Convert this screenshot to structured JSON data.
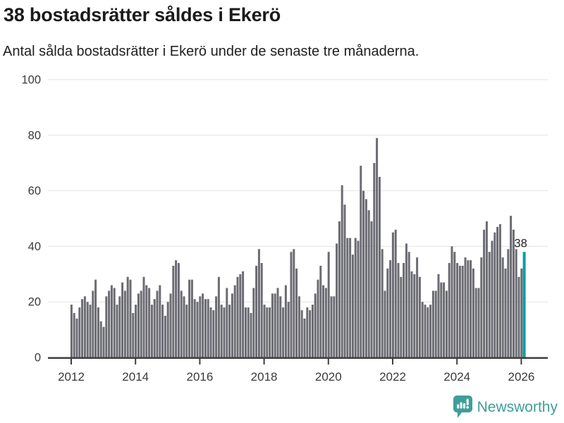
{
  "title": "38 bostadsrätter såldes i Ekerö",
  "subtitle": "Antal sålda bostadsrätter i Ekerö under de senaste tre månaderna.",
  "colors": {
    "bar": "#6b6b73",
    "highlight": "#00a1a1",
    "grid": "#e2e2e2",
    "axis": "#3f3f3f",
    "tick_text": "#3a3a3a",
    "annotation_text": "#222222",
    "brand": "#3f9e98"
  },
  "branding": {
    "logo_text": "Newsworthy",
    "logo_icon": "bar-chart-speech-bubble-icon"
  },
  "chart_data": {
    "type": "bar",
    "title": "38 bostadsrätter såldes i Ekerö",
    "subtitle": "Antal sålda bostadsrätter i Ekerö under de senaste tre månaderna.",
    "xlabel": "",
    "ylabel": "",
    "frequency": "monthly",
    "start_period": "2012-01",
    "ylim": [
      0,
      100
    ],
    "y_ticks": [
      0,
      20,
      40,
      60,
      80,
      100
    ],
    "grid": true,
    "legend": false,
    "x_ticks": [
      {
        "month": 0,
        "label": "2012"
      },
      {
        "month": 24,
        "label": "2014"
      },
      {
        "month": 48,
        "label": "2016"
      },
      {
        "month": 72,
        "label": "2018"
      },
      {
        "month": 96,
        "label": "2020"
      },
      {
        "month": 120,
        "label": "2022"
      },
      {
        "month": 144,
        "label": "2024"
      },
      {
        "month": 168,
        "label": "2026"
      }
    ],
    "values": [
      19,
      16,
      14,
      18,
      21,
      22,
      20,
      19,
      24,
      28,
      18,
      13,
      11,
      22,
      24,
      26,
      25,
      19,
      22,
      27,
      24,
      29,
      28,
      16,
      19,
      23,
      24,
      29,
      26,
      25,
      19,
      21,
      24,
      26,
      19,
      15,
      20,
      23,
      33,
      35,
      34,
      24,
      22,
      19,
      28,
      28,
      21,
      20,
      22,
      23,
      21,
      21,
      18,
      17,
      22,
      29,
      19,
      18,
      25,
      19,
      23,
      26,
      29,
      30,
      31,
      18,
      18,
      16,
      25,
      33,
      39,
      34,
      19,
      18,
      18,
      23,
      23,
      25,
      22,
      18,
      26,
      20,
      38,
      39,
      32,
      22,
      17,
      14,
      18,
      17,
      19,
      23,
      28,
      33,
      26,
      25,
      38,
      22,
      22,
      41,
      49,
      62,
      55,
      43,
      43,
      37,
      43,
      42,
      69,
      60,
      57,
      53,
      49,
      70,
      79,
      65,
      39,
      24,
      32,
      35,
      45,
      46,
      34,
      29,
      34,
      41,
      38,
      31,
      30,
      36,
      29,
      20,
      19,
      18,
      19,
      24,
      24,
      30,
      27,
      27,
      24,
      34,
      40,
      38,
      34,
      33,
      33,
      36,
      35,
      35,
      32,
      25,
      25,
      36,
      46,
      49,
      38,
      42,
      45,
      47,
      48,
      36,
      32,
      39,
      51,
      46,
      39,
      29,
      32,
      38
    ],
    "highlight_last": true,
    "last_value_label": "38"
  }
}
